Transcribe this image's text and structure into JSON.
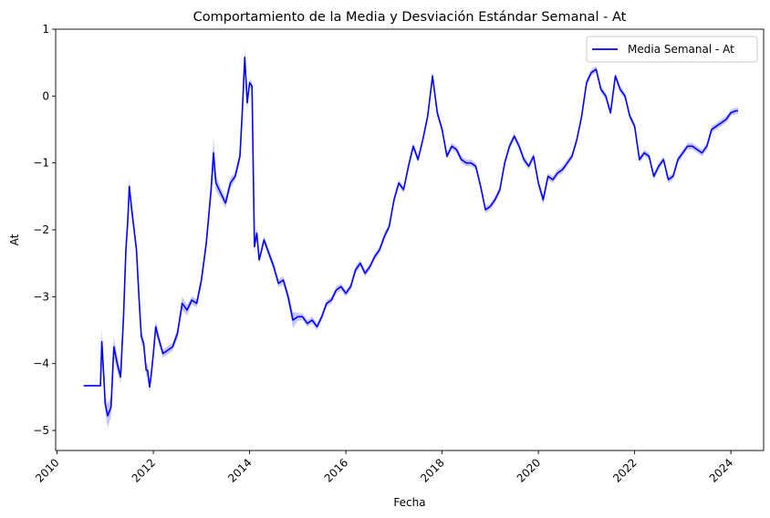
{
  "chart_data": {
    "type": "line",
    "title": "Comportamiento de la Media y Desviación Estándar Semanal - At",
    "xlabel": "Fecha",
    "ylabel": "At",
    "xlim": [
      2009.97,
      2024.68
    ],
    "ylim": [
      -5.3,
      1.0
    ],
    "x_ticks": [
      2010,
      2012,
      2014,
      2016,
      2018,
      2020,
      2022,
      2024
    ],
    "x_tick_labels": [
      "2010",
      "2012",
      "2014",
      "2016",
      "2018",
      "2020",
      "2022",
      "2024"
    ],
    "y_ticks": [
      1,
      0,
      -1,
      -2,
      -3,
      -4,
      -5
    ],
    "y_tick_labels": [
      "1",
      "0",
      "−1",
      "−2",
      "−3",
      "−4",
      "−5"
    ],
    "grid": false,
    "legend_position": "top-right",
    "series": [
      {
        "name": "Media Semanal - At",
        "color": "#0000ff",
        "band_color": "#0000ff",
        "x": [
          2010.55,
          2010.9,
          2010.93,
          2010.97,
          2011.0,
          2011.05,
          2011.12,
          2011.18,
          2011.25,
          2011.32,
          2011.38,
          2011.43,
          2011.47,
          2011.5,
          2011.55,
          2011.6,
          2011.65,
          2011.7,
          2011.75,
          2011.8,
          2011.85,
          2011.88,
          2011.92,
          2011.95,
          2012.0,
          2012.05,
          2012.1,
          2012.2,
          2012.3,
          2012.4,
          2012.5,
          2012.6,
          2012.7,
          2012.8,
          2012.9,
          2013.0,
          2013.1,
          2013.2,
          2013.25,
          2013.3,
          2013.4,
          2013.5,
          2013.6,
          2013.7,
          2013.8,
          2013.85,
          2013.9,
          2013.95,
          2014.0,
          2014.05,
          2014.1,
          2014.15,
          2014.2,
          2014.3,
          2014.4,
          2014.5,
          2014.6,
          2014.7,
          2014.8,
          2014.9,
          2015.0,
          2015.1,
          2015.2,
          2015.3,
          2015.4,
          2015.5,
          2015.6,
          2015.7,
          2015.8,
          2015.9,
          2016.0,
          2016.1,
          2016.2,
          2016.3,
          2016.4,
          2016.5,
          2016.6,
          2016.7,
          2016.8,
          2016.9,
          2017.0,
          2017.1,
          2017.2,
          2017.3,
          2017.4,
          2017.5,
          2017.6,
          2017.7,
          2017.8,
          2017.9,
          2018.0,
          2018.1,
          2018.2,
          2018.3,
          2018.4,
          2018.5,
          2018.6,
          2018.7,
          2018.8,
          2018.9,
          2019.0,
          2019.1,
          2019.2,
          2019.3,
          2019.4,
          2019.5,
          2019.6,
          2019.7,
          2019.8,
          2019.9,
          2020.0,
          2020.1,
          2020.2,
          2020.3,
          2020.4,
          2020.5,
          2020.6,
          2020.7,
          2020.8,
          2020.9,
          2021.0,
          2021.1,
          2021.2,
          2021.3,
          2021.4,
          2021.5,
          2021.6,
          2021.7,
          2021.8,
          2021.9,
          2022.0,
          2022.1,
          2022.2,
          2022.3,
          2022.4,
          2022.5,
          2022.6,
          2022.7,
          2022.8,
          2022.9,
          2023.0,
          2023.1,
          2023.2,
          2023.3,
          2023.4,
          2023.5,
          2023.6,
          2023.7,
          2023.8,
          2023.9,
          2024.0,
          2024.1,
          2024.15
        ],
        "values": [
          -4.33,
          -4.33,
          -3.67,
          -4.2,
          -4.6,
          -4.78,
          -4.65,
          -3.75,
          -4.0,
          -4.2,
          -3.3,
          -2.3,
          -1.85,
          -1.35,
          -1.7,
          -2.0,
          -2.3,
          -3.0,
          -3.6,
          -3.7,
          -4.1,
          -4.1,
          -4.35,
          -4.2,
          -3.85,
          -3.45,
          -3.6,
          -3.85,
          -3.8,
          -3.75,
          -3.55,
          -3.1,
          -3.2,
          -3.05,
          -3.1,
          -2.75,
          -2.2,
          -1.4,
          -0.85,
          -1.3,
          -1.45,
          -1.6,
          -1.3,
          -1.2,
          -0.9,
          -0.2,
          0.58,
          -0.1,
          0.2,
          0.15,
          -2.25,
          -2.05,
          -2.45,
          -2.15,
          -2.35,
          -2.55,
          -2.8,
          -2.75,
          -3.0,
          -3.35,
          -3.3,
          -3.3,
          -3.4,
          -3.35,
          -3.45,
          -3.3,
          -3.1,
          -3.05,
          -2.9,
          -2.85,
          -2.95,
          -2.85,
          -2.6,
          -2.5,
          -2.65,
          -2.55,
          -2.4,
          -2.3,
          -2.1,
          -1.95,
          -1.55,
          -1.3,
          -1.4,
          -1.05,
          -0.75,
          -0.95,
          -0.65,
          -0.3,
          0.3,
          -0.25,
          -0.5,
          -0.9,
          -0.75,
          -0.8,
          -0.95,
          -1.0,
          -1.0,
          -1.05,
          -1.35,
          -1.7,
          -1.65,
          -1.55,
          -1.4,
          -1.0,
          -0.75,
          -0.6,
          -0.75,
          -0.95,
          -1.05,
          -0.9,
          -1.3,
          -1.55,
          -1.2,
          -1.25,
          -1.15,
          -1.1,
          -1.0,
          -0.9,
          -0.65,
          -0.3,
          0.2,
          0.35,
          0.4,
          0.1,
          0.0,
          -0.25,
          0.3,
          0.1,
          0.0,
          -0.3,
          -0.45,
          -0.95,
          -0.85,
          -0.9,
          -1.2,
          -1.05,
          -0.95,
          -1.25,
          -1.2,
          -0.95,
          -0.85,
          -0.75,
          -0.75,
          -0.8,
          -0.85,
          -0.75,
          -0.5,
          -0.45,
          -0.4,
          -0.35,
          -0.25,
          -0.22,
          -0.22
        ],
        "std": [
          0.0,
          0.0,
          0.2,
          0.15,
          0.12,
          0.18,
          0.15,
          0.15,
          0.12,
          0.1,
          0.1,
          0.1,
          0.1,
          0.12,
          0.12,
          0.1,
          0.1,
          0.1,
          0.1,
          0.08,
          0.1,
          0.1,
          0.08,
          0.08,
          0.08,
          0.1,
          0.08,
          0.06,
          0.06,
          0.06,
          0.08,
          0.1,
          0.08,
          0.06,
          0.06,
          0.08,
          0.1,
          0.12,
          0.25,
          0.12,
          0.08,
          0.08,
          0.08,
          0.06,
          0.08,
          0.1,
          0.15,
          0.1,
          0.06,
          0.06,
          0.1,
          0.08,
          0.06,
          0.06,
          0.06,
          0.06,
          0.06,
          0.06,
          0.08,
          0.12,
          0.06,
          0.05,
          0.05,
          0.05,
          0.05,
          0.05,
          0.05,
          0.05,
          0.05,
          0.05,
          0.05,
          0.05,
          0.06,
          0.05,
          0.05,
          0.05,
          0.05,
          0.05,
          0.05,
          0.05,
          0.05,
          0.05,
          0.05,
          0.05,
          0.05,
          0.05,
          0.05,
          0.05,
          0.08,
          0.06,
          0.05,
          0.05,
          0.05,
          0.05,
          0.05,
          0.05,
          0.05,
          0.05,
          0.05,
          0.05,
          0.05,
          0.05,
          0.05,
          0.05,
          0.05,
          0.05,
          0.05,
          0.05,
          0.05,
          0.05,
          0.05,
          0.08,
          0.05,
          0.05,
          0.05,
          0.05,
          0.05,
          0.05,
          0.05,
          0.05,
          0.05,
          0.05,
          0.05,
          0.05,
          0.05,
          0.05,
          0.05,
          0.05,
          0.05,
          0.05,
          0.05,
          0.05,
          0.05,
          0.05,
          0.05,
          0.05,
          0.05,
          0.05,
          0.05,
          0.05,
          0.05,
          0.05,
          0.05,
          0.05,
          0.05,
          0.05,
          0.05,
          0.05,
          0.05,
          0.05,
          0.05,
          0.05,
          0.05
        ]
      }
    ]
  }
}
